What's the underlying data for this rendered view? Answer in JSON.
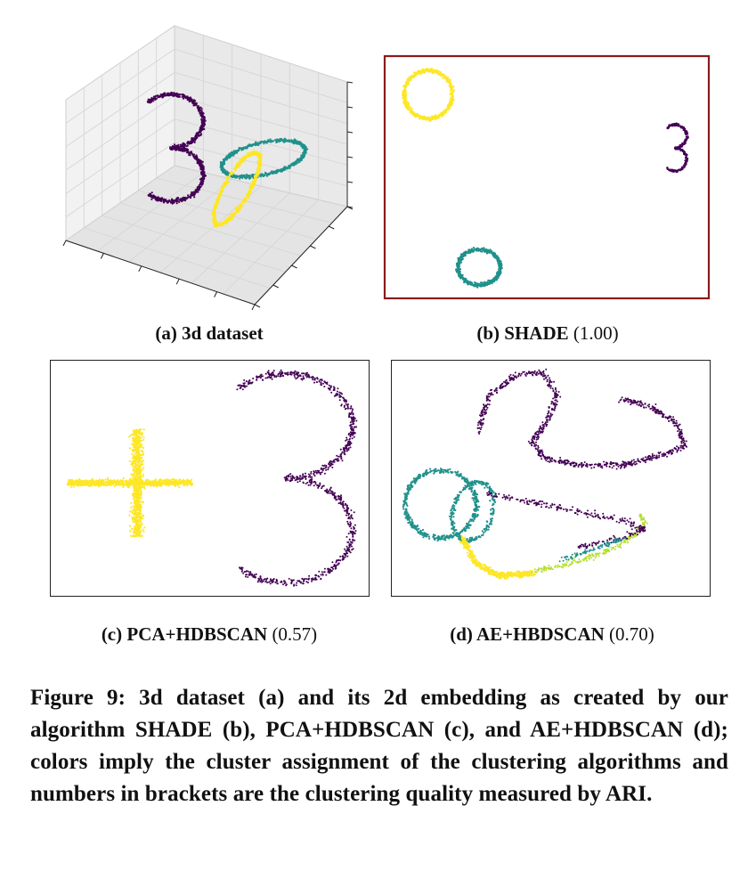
{
  "panels": [
    {
      "id": "a",
      "label": "(a) 3d dataset",
      "score": ""
    },
    {
      "id": "b",
      "label": "(b) SHADE",
      "score": "(1.00)"
    },
    {
      "id": "c",
      "label": "(c) PCA+HDBSCAN",
      "score": "(0.57)"
    },
    {
      "id": "d",
      "label": "(d) AE+HBDSCAN",
      "score": "(0.70)"
    }
  ],
  "caption": "Figure 9: 3d dataset (a) and its 2d embedding as created by our algorithm SHADE (b), PCA+HDBSCAN (c), and AE+HDBSCAN (d); colors imply the cluster assignment of the clustering algorithms and numbers in brackets are the clustering quality measured by ARI.",
  "colors": {
    "purple": "#440154",
    "teal": "#21918c",
    "yellow": "#fde725",
    "lime": "#b5de2b",
    "frame_b": "#8b1a1a"
  }
}
